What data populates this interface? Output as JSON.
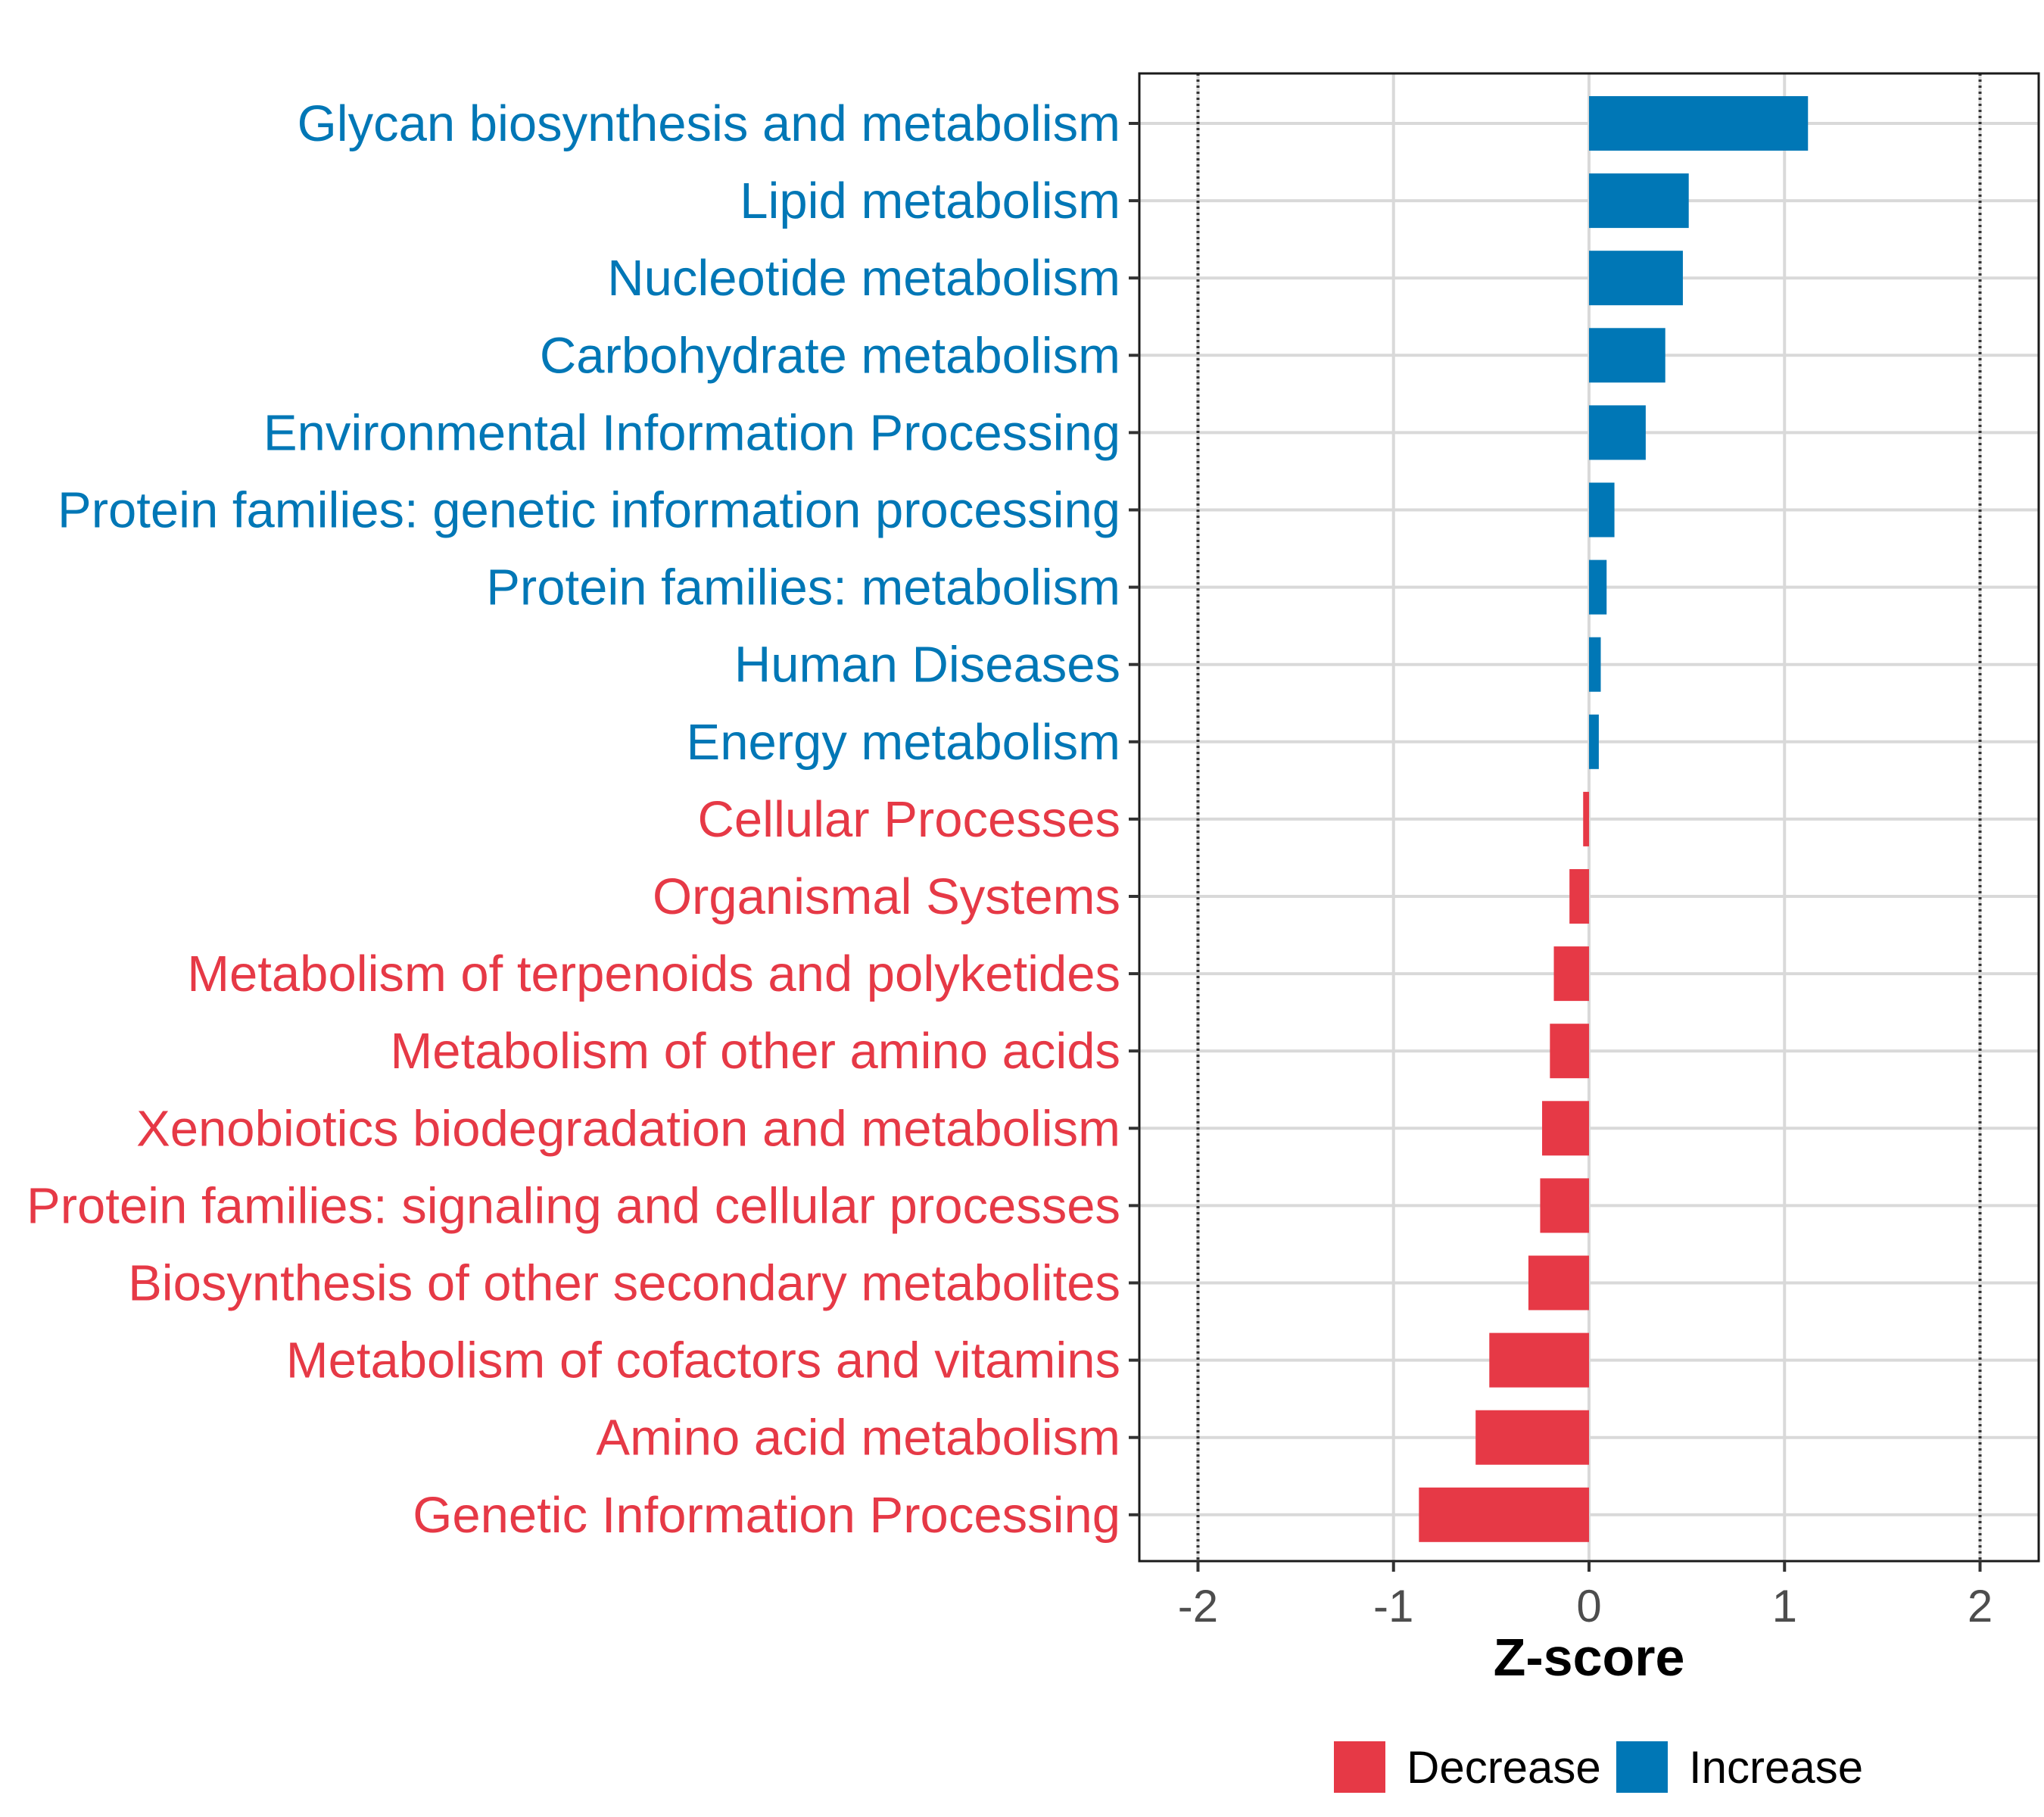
{
  "chart_data": {
    "type": "bar",
    "orientation": "horizontal",
    "xlabel": "Z-score",
    "ylabel": "",
    "xlim": [
      -2.3,
      2.3
    ],
    "x_ticks": [
      -2,
      -1,
      0,
      1,
      2
    ],
    "x_tick_labels": [
      "-2",
      "-1",
      "0",
      "1",
      "2"
    ],
    "reference_lines": [
      -2,
      2
    ],
    "grid": true,
    "colors": {
      "Decrease": "#e63946",
      "Increase": "#0077b6"
    },
    "categories": [
      "Glycan biosynthesis and metabolism",
      "Lipid metabolism",
      "Nucleotide metabolism",
      "Carbohydrate metabolism",
      "Environmental Information Processing",
      "Protein families: genetic information processing",
      "Protein families: metabolism",
      "Human Diseases",
      "Energy metabolism",
      "Cellular Processes",
      "Organismal Systems",
      "Metabolism of terpenoids and polyketides",
      "Metabolism of other amino acids",
      "Xenobiotics biodegradation and metabolism",
      "Protein families: signaling and cellular processes",
      "Biosynthesis of other secondary metabolites",
      "Metabolism of cofactors and vitamins",
      "Amino acid metabolism",
      "Genetic Information Processing"
    ],
    "values": [
      1.12,
      0.51,
      0.48,
      0.39,
      0.29,
      0.13,
      0.09,
      0.06,
      0.05,
      -0.03,
      -0.1,
      -0.18,
      -0.2,
      -0.24,
      -0.25,
      -0.31,
      -0.51,
      -0.58,
      -0.87
    ],
    "groups": [
      "Increase",
      "Increase",
      "Increase",
      "Increase",
      "Increase",
      "Increase",
      "Increase",
      "Increase",
      "Increase",
      "Decrease",
      "Decrease",
      "Decrease",
      "Decrease",
      "Decrease",
      "Decrease",
      "Decrease",
      "Decrease",
      "Decrease",
      "Decrease"
    ],
    "legend": {
      "placement": "bottom",
      "entries": [
        {
          "label": "Decrease",
          "color": "#e63946"
        },
        {
          "label": "Increase",
          "color": "#0077b6"
        }
      ]
    }
  }
}
